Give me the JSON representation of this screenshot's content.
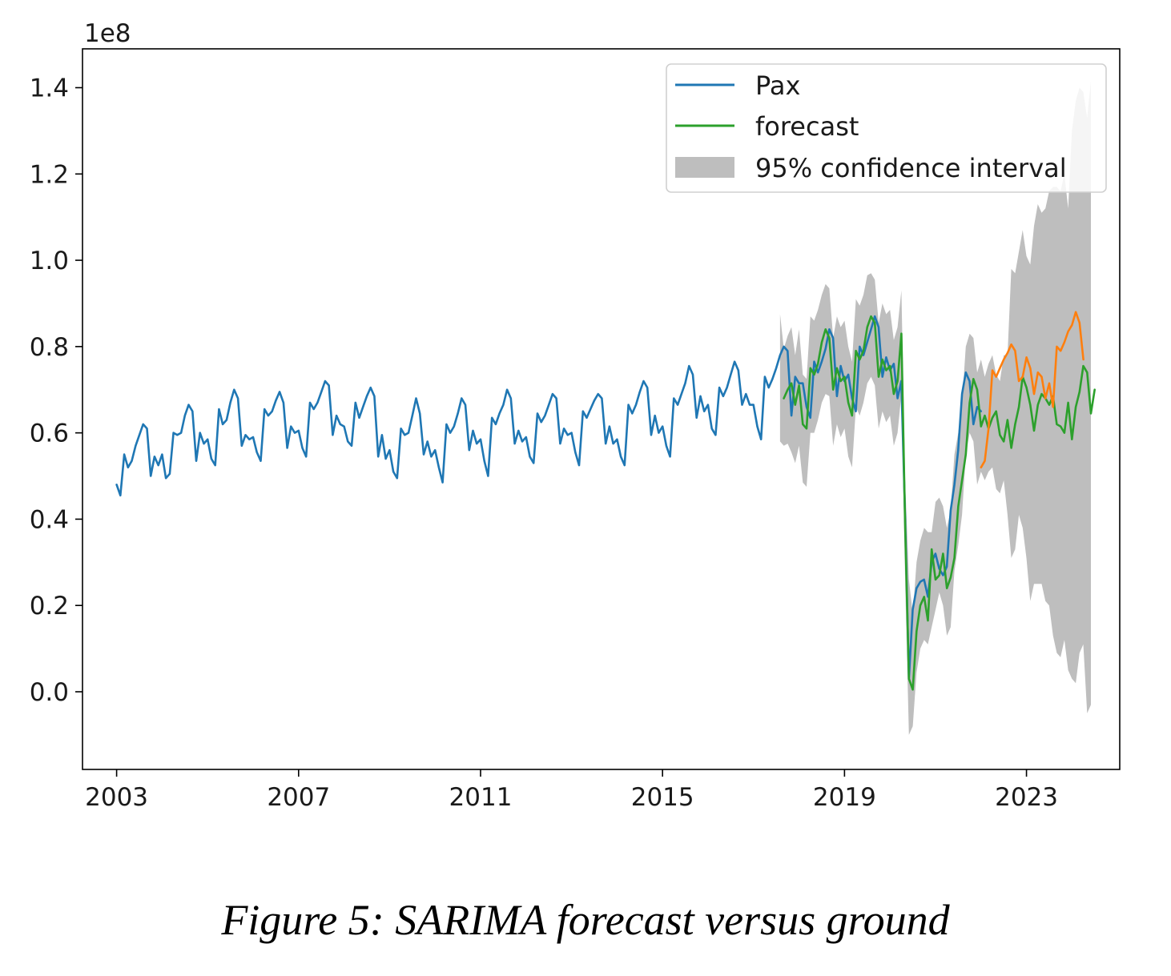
{
  "caption": "Figure 5: SARIMA forecast versus ground",
  "chart_data": {
    "type": "line",
    "y_offset_label": "1e8",
    "xlim": [
      2002.25,
      2025.05
    ],
    "ylim": [
      -0.18,
      1.49
    ],
    "x_ticks": [
      2003,
      2007,
      2011,
      2015,
      2019,
      2023
    ],
    "x_tick_labels": [
      "2003",
      "2007",
      "2011",
      "2015",
      "2019",
      "2023"
    ],
    "y_ticks": [
      0.0,
      0.2,
      0.4,
      0.6,
      0.8,
      1.0,
      1.2,
      1.4
    ],
    "y_tick_labels": [
      "0.0",
      "0.2",
      "0.4",
      "0.6",
      "0.8",
      "1.0",
      "1.2",
      "1.4"
    ],
    "legend_position": "upper right",
    "grid": false,
    "colors": {
      "pax": "#1f77b4",
      "forecast": "#2ca02c",
      "future": "#ff7f0e",
      "ci_fill": "#bebebe"
    },
    "legend": [
      {
        "label": "Pax",
        "kind": "line",
        "color": "#1f77b4"
      },
      {
        "label": "forecast",
        "kind": "line",
        "color": "#2ca02c"
      },
      {
        "label": "95% confidence interval",
        "kind": "patch",
        "color": "#bebebe"
      }
    ],
    "series": [
      {
        "name": "Pax",
        "color": "#1f77b4",
        "x_start": 2003.0,
        "step": 0.08333,
        "values": [
          0.48,
          0.455,
          0.55,
          0.52,
          0.535,
          0.57,
          0.595,
          0.62,
          0.61,
          0.5,
          0.545,
          0.525,
          0.55,
          0.495,
          0.505,
          0.6,
          0.595,
          0.6,
          0.64,
          0.665,
          0.65,
          0.535,
          0.6,
          0.575,
          0.585,
          0.54,
          0.525,
          0.655,
          0.62,
          0.63,
          0.67,
          0.7,
          0.68,
          0.57,
          0.595,
          0.585,
          0.59,
          0.555,
          0.535,
          0.655,
          0.64,
          0.65,
          0.675,
          0.695,
          0.67,
          0.565,
          0.615,
          0.6,
          0.605,
          0.565,
          0.545,
          0.67,
          0.655,
          0.67,
          0.695,
          0.72,
          0.71,
          0.595,
          0.64,
          0.62,
          0.615,
          0.58,
          0.57,
          0.67,
          0.635,
          0.66,
          0.685,
          0.705,
          0.685,
          0.545,
          0.595,
          0.54,
          0.56,
          0.51,
          0.495,
          0.61,
          0.595,
          0.6,
          0.64,
          0.68,
          0.645,
          0.55,
          0.58,
          0.545,
          0.56,
          0.52,
          0.485,
          0.62,
          0.6,
          0.615,
          0.645,
          0.68,
          0.665,
          0.56,
          0.605,
          0.575,
          0.585,
          0.535,
          0.5,
          0.635,
          0.62,
          0.645,
          0.665,
          0.7,
          0.68,
          0.575,
          0.605,
          0.58,
          0.59,
          0.545,
          0.53,
          0.645,
          0.625,
          0.64,
          0.665,
          0.69,
          0.68,
          0.575,
          0.61,
          0.595,
          0.6,
          0.555,
          0.525,
          0.65,
          0.635,
          0.655,
          0.675,
          0.69,
          0.68,
          0.575,
          0.615,
          0.575,
          0.585,
          0.545,
          0.525,
          0.665,
          0.645,
          0.665,
          0.695,
          0.72,
          0.705,
          0.595,
          0.64,
          0.6,
          0.615,
          0.57,
          0.545,
          0.68,
          0.665,
          0.69,
          0.715,
          0.755,
          0.735,
          0.635,
          0.685,
          0.65,
          0.665,
          0.61,
          0.595,
          0.705,
          0.685,
          0.705,
          0.735,
          0.765,
          0.745,
          0.665,
          0.69,
          0.665,
          0.665,
          0.615,
          0.585,
          0.73,
          0.705,
          0.725,
          0.75,
          0.78,
          0.8,
          0.79,
          0.64,
          0.73,
          0.715,
          0.715,
          0.66,
          0.635,
          0.765,
          0.74,
          0.765,
          0.795,
          0.84,
          0.82,
          0.685,
          0.755,
          0.72,
          0.735,
          0.68,
          0.65,
          0.8,
          0.78,
          0.81,
          0.84,
          0.87,
          0.845,
          0.73,
          0.775,
          0.745,
          0.76,
          0.68,
          0.72,
          0.4,
          0.03,
          0.19,
          0.24,
          0.255,
          0.26,
          0.22,
          0.3,
          0.32,
          0.285,
          0.27,
          0.29,
          0.42,
          0.48,
          0.56,
          0.69,
          0.74,
          0.72,
          0.62,
          0.66,
          0.65
        ]
      },
      {
        "name": "forecast",
        "color": "#2ca02c",
        "x_start": 2017.6667,
        "step": 0.08333,
        "values": [
          0.68,
          0.7,
          0.715,
          0.665,
          0.71,
          0.62,
          0.61,
          0.75,
          0.735,
          0.76,
          0.81,
          0.84,
          0.82,
          0.7,
          0.75,
          0.72,
          0.73,
          0.67,
          0.64,
          0.79,
          0.77,
          0.79,
          0.845,
          0.87,
          0.855,
          0.73,
          0.77,
          0.745,
          0.755,
          0.69,
          0.72,
          0.83,
          0.38,
          0.03,
          0.005,
          0.14,
          0.2,
          0.22,
          0.165,
          0.33,
          0.26,
          0.27,
          0.32,
          0.24,
          0.265,
          0.31,
          0.43,
          0.49,
          0.55,
          0.67,
          0.725,
          0.7,
          0.615,
          0.64,
          0.61,
          0.635,
          0.65,
          0.595,
          0.58,
          0.63,
          0.565,
          0.62,
          0.66,
          0.73,
          0.705,
          0.665,
          0.605,
          0.665,
          0.69,
          0.68,
          0.665,
          0.685,
          0.62,
          0.615,
          0.6,
          0.67,
          0.585,
          0.66,
          0.695,
          0.755,
          0.74,
          0.645,
          0.7
        ]
      },
      {
        "name": "",
        "color": "#ff7f0e",
        "x_start": 2022.0,
        "step": 0.08333,
        "values": [
          0.52,
          0.535,
          0.61,
          0.745,
          0.73,
          0.75,
          0.77,
          0.785,
          0.805,
          0.79,
          0.72,
          0.73,
          0.775,
          0.75,
          0.69,
          0.74,
          0.73,
          0.68,
          0.715,
          0.66,
          0.8,
          0.79,
          0.81,
          0.835,
          0.85,
          0.88,
          0.855,
          0.77
        ]
      }
    ],
    "confidence_interval": {
      "x_start": 2017.5833,
      "step": 0.08333,
      "upper": [
        0.875,
        0.795,
        0.825,
        0.845,
        0.78,
        0.84,
        0.735,
        0.725,
        0.87,
        0.86,
        0.885,
        0.92,
        0.945,
        0.935,
        0.82,
        0.87,
        0.845,
        0.86,
        0.8,
        0.765,
        0.91,
        0.895,
        0.92,
        0.965,
        0.97,
        0.955,
        0.855,
        0.9,
        0.875,
        0.885,
        0.815,
        0.845,
        0.93,
        0.49,
        0.26,
        0.18,
        0.3,
        0.35,
        0.38,
        0.37,
        0.37,
        0.44,
        0.45,
        0.43,
        0.38,
        0.42,
        0.55,
        0.6,
        0.67,
        0.8,
        0.83,
        0.82,
        0.74,
        0.77,
        0.73,
        0.76,
        0.78,
        0.735,
        0.72,
        0.78,
        0.78,
        0.98,
        0.97,
        1.02,
        1.07,
        1.01,
        0.99,
        1.08,
        1.13,
        1.11,
        1.12,
        1.16,
        1.17,
        1.17,
        1.16,
        1.2,
        1.12,
        1.3,
        1.37,
        1.4,
        1.39,
        1.33,
        1.415
      ],
      "lower": [
        0.58,
        0.57,
        0.575,
        0.555,
        0.53,
        0.57,
        0.485,
        0.475,
        0.6,
        0.6,
        0.63,
        0.67,
        0.69,
        0.685,
        0.57,
        0.62,
        0.59,
        0.61,
        0.545,
        0.52,
        0.66,
        0.64,
        0.67,
        0.715,
        0.73,
        0.71,
        0.61,
        0.65,
        0.625,
        0.64,
        0.57,
        0.6,
        0.69,
        0.255,
        -0.1,
        -0.08,
        0.045,
        0.1,
        0.12,
        0.11,
        0.15,
        0.19,
        0.23,
        0.2,
        0.13,
        0.15,
        0.28,
        0.34,
        0.41,
        0.55,
        0.6,
        0.58,
        0.48,
        0.51,
        0.49,
        0.51,
        0.52,
        0.47,
        0.46,
        0.49,
        0.41,
        0.31,
        0.33,
        0.41,
        0.38,
        0.31,
        0.21,
        0.25,
        0.25,
        0.25,
        0.21,
        0.2,
        0.13,
        0.09,
        0.08,
        0.12,
        0.05,
        0.03,
        0.02,
        0.09,
        0.11,
        -0.05,
        -0.03
      ]
    }
  }
}
